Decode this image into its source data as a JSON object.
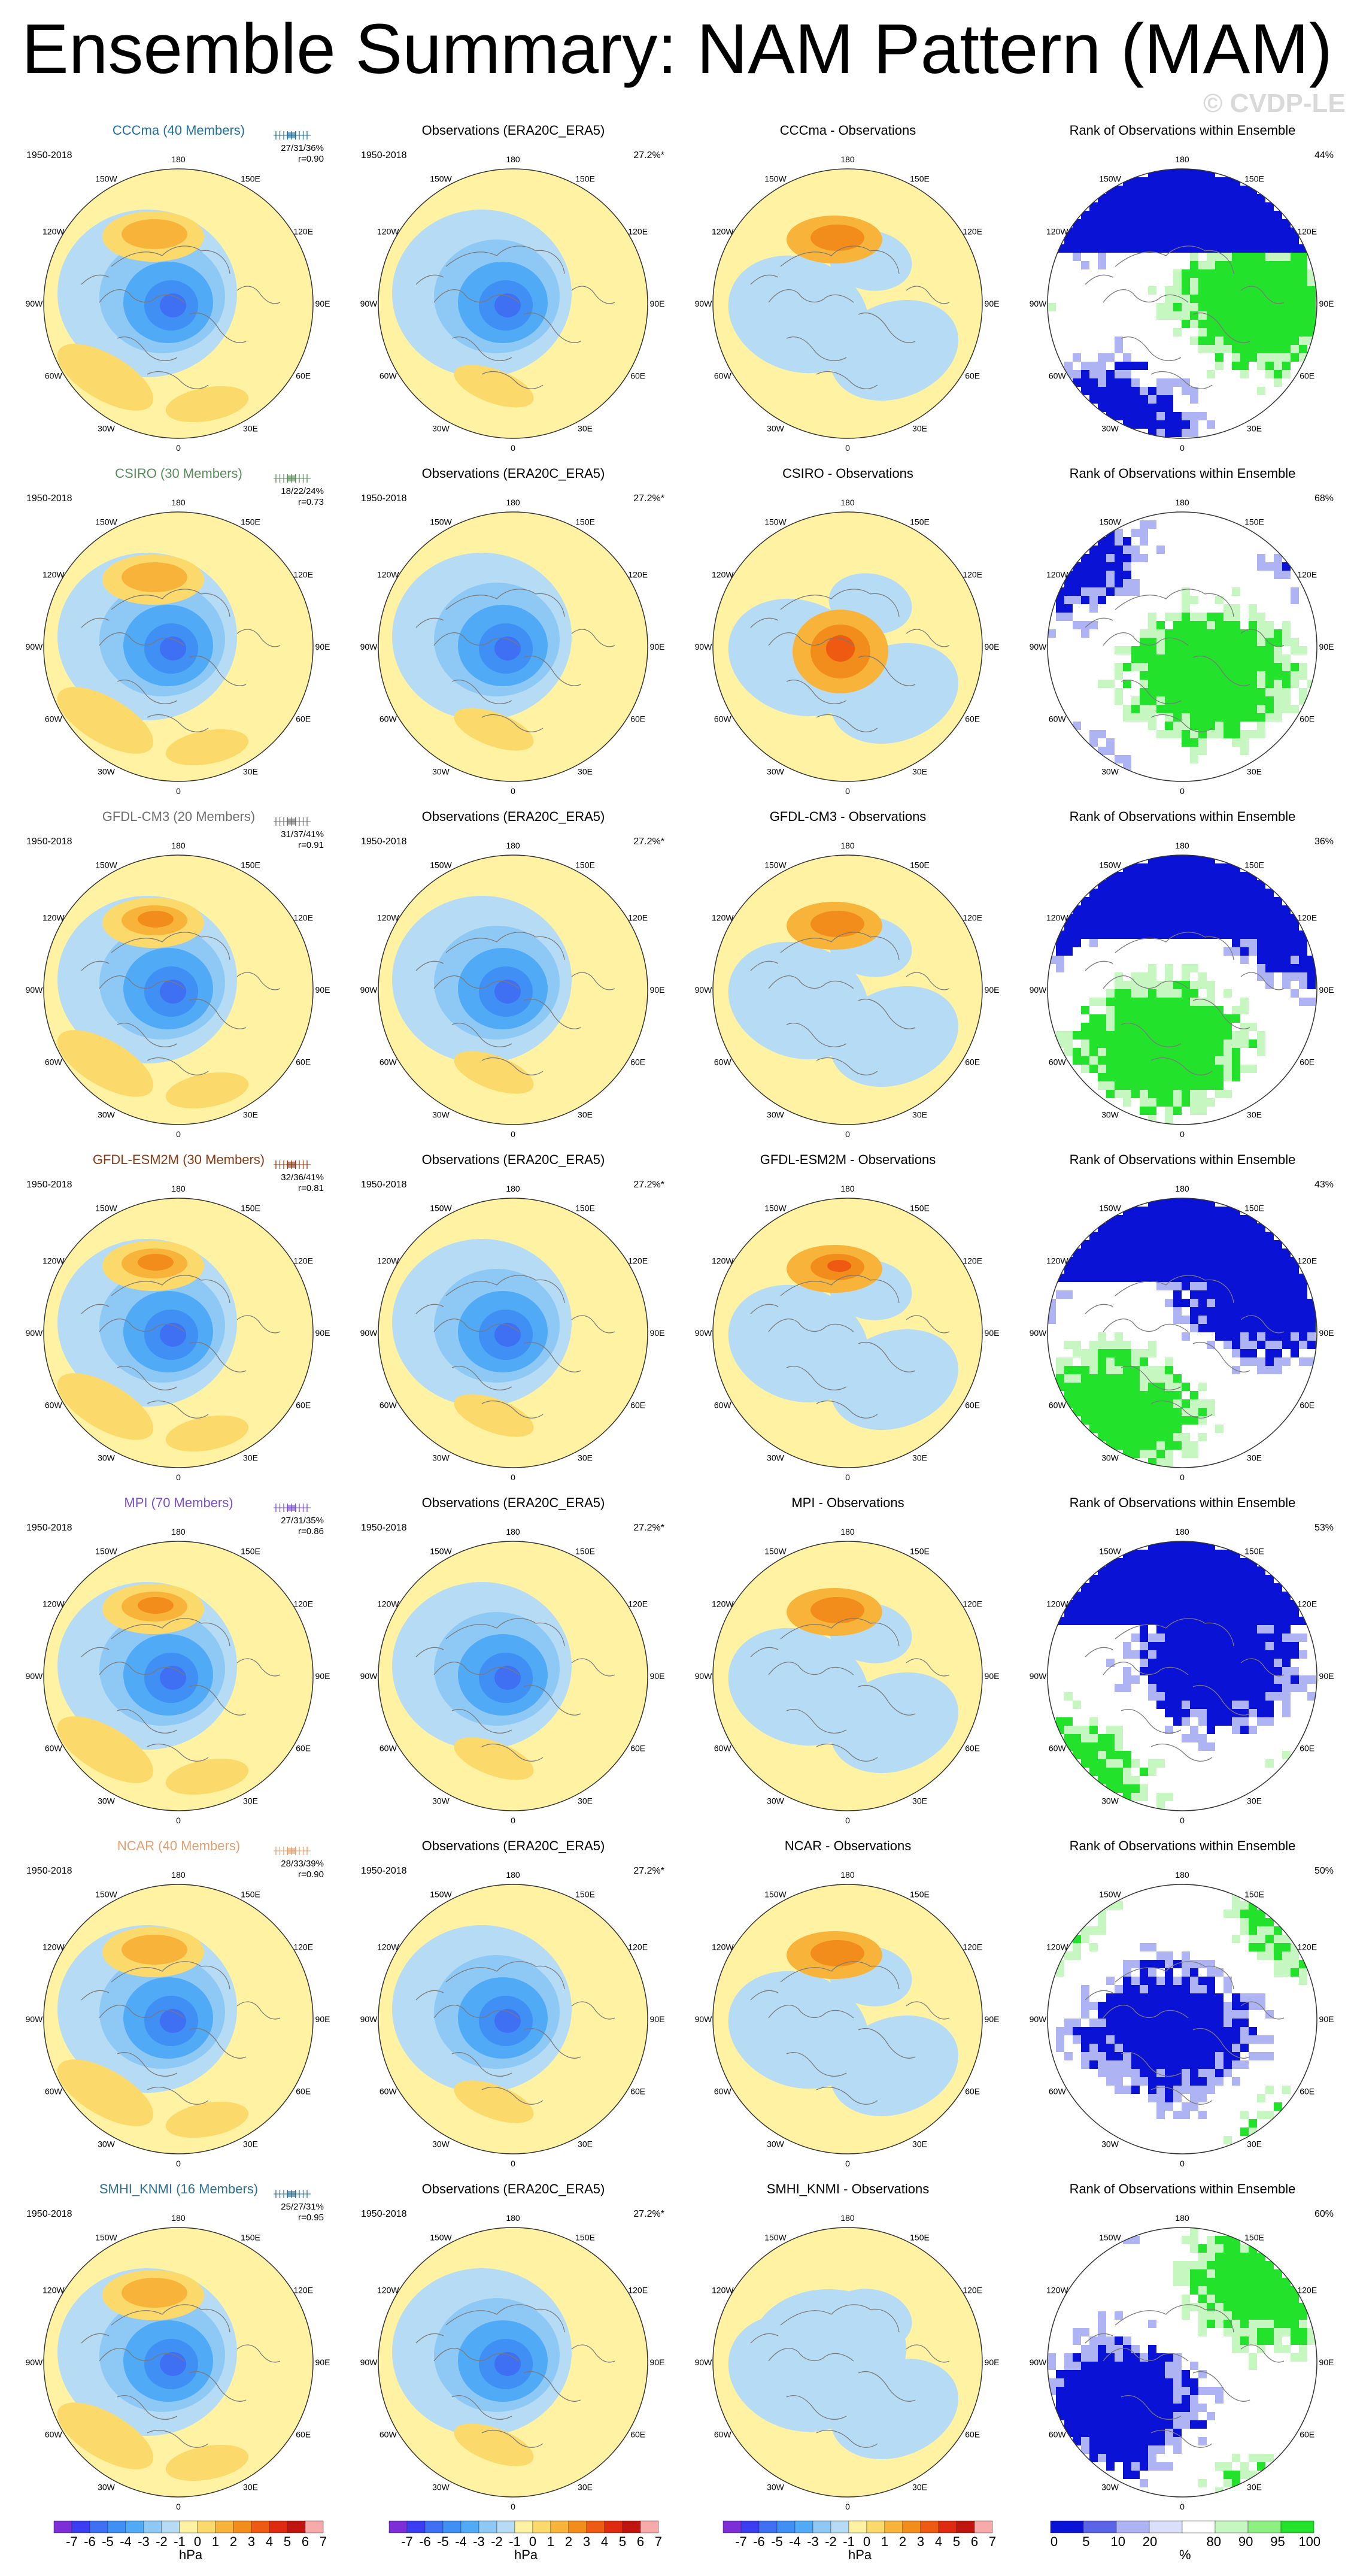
{
  "title": "Ensemble Summary: NAM Pattern (MAM)",
  "watermark": "© CVDP-LE",
  "years": "1950-2018",
  "obs_pct": "27.2%*",
  "obs_title": "Observations (ERA20C_ERA5)",
  "rank_title": "Rank of Observations within Ensemble",
  "lon_labels": [
    "180",
    "150E",
    "120E",
    "90E",
    "60E",
    "30E",
    "0",
    "30W",
    "60W",
    "90W",
    "120W",
    "150W"
  ],
  "colors": {
    "neg": [
      "#7c2fd6",
      "#3b3df0",
      "#3f6ff2",
      "#3f8ff4",
      "#50aaf6",
      "#8ec9f6",
      "#b6dcf5"
    ],
    "pos": [
      "#fff3a3",
      "#fbd96b",
      "#f8b43a",
      "#f28c1a",
      "#ee5a12",
      "#de2a0e",
      "#c0150f",
      "#f7aaa9"
    ],
    "rank": [
      "#0a12d6",
      "#5a64e6",
      "#aeb3f3",
      "#dcdff9",
      "#ffffff",
      "#c6f7c0",
      "#8df182",
      "#22e22c"
    ]
  },
  "rows": [
    {
      "model": "CCCma (40 Members)",
      "model_color": "#1f6f9f",
      "dist": "27/31/36%",
      "r": "r=0.90",
      "diff_title": "CCCma - Observations",
      "rank_pct": "44%"
    },
    {
      "model": "CSIRO (30 Members)",
      "model_color": "#5a8a5a",
      "dist": "18/22/24%",
      "r": "r=0.73",
      "diff_title": "CSIRO - Observations",
      "rank_pct": "68%"
    },
    {
      "model": "GFDL-CM3 (20 Members)",
      "model_color": "#6e6e6e",
      "dist": "31/37/41%",
      "r": "r=0.91",
      "diff_title": "GFDL-CM3 - Observations",
      "rank_pct": "36%"
    },
    {
      "model": "GFDL-ESM2M (30 Members)",
      "model_color": "#8a3a14",
      "dist": "32/36/41%",
      "r": "r=0.81",
      "diff_title": "GFDL-ESM2M - Observations",
      "rank_pct": "43%"
    },
    {
      "model": "MPI (70 Members)",
      "model_color": "#7a4fd0",
      "dist": "27/31/35%",
      "r": "r=0.86",
      "diff_title": "MPI - Observations",
      "rank_pct": "53%"
    },
    {
      "model": "NCAR (40 Members)",
      "model_color": "#e0a070",
      "dist": "28/33/39%",
      "r": "r=0.90",
      "diff_title": "NCAR - Observations",
      "rank_pct": "50%"
    },
    {
      "model": "SMHI_KNMI (16 Members)",
      "model_color": "#2f6f8f",
      "dist": "25/27/31%",
      "r": "r=0.95",
      "diff_title": "SMHI_KNMI - Observations",
      "rank_pct": "60%"
    }
  ],
  "colorbar_hpa": {
    "labels": [
      "-7",
      "-6",
      "-5",
      "-4",
      "-3",
      "-2",
      "-1",
      "0",
      "1",
      "2",
      "3",
      "4",
      "5",
      "6",
      "7"
    ],
    "unit": "hPa"
  },
  "colorbar_rank": {
    "labels": [
      "0",
      "5",
      "10",
      "20",
      "80",
      "90",
      "95",
      "100"
    ],
    "unit": "%"
  }
}
